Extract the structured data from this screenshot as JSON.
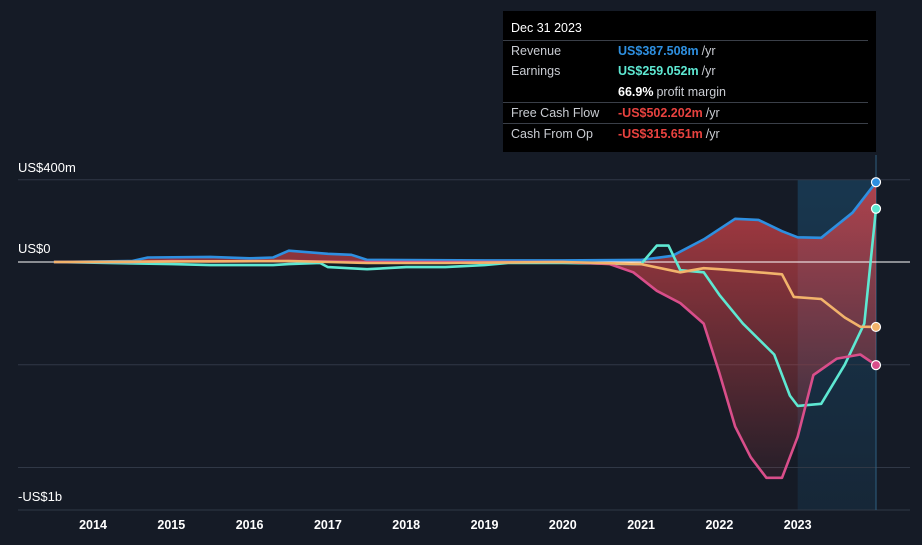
{
  "tooltip": {
    "date": "Dec 31 2023",
    "rows": [
      {
        "label": "Revenue",
        "value": "US$387.508m",
        "suffix": "/yr",
        "color": "#2e8fe0"
      },
      {
        "label": "Earnings",
        "value": "US$259.052m",
        "suffix": "/yr",
        "color": "#5ee8d2"
      },
      {
        "label": "Free Cash Flow",
        "value": "-US$502.202m",
        "suffix": "/yr",
        "color": "#e8423f"
      },
      {
        "label": "Cash From Op",
        "value": "-US$315.651m",
        "suffix": "/yr",
        "color": "#e8423f"
      }
    ],
    "margin_value": "66.9%",
    "margin_label": "profit margin"
  },
  "chart_data": {
    "type": "line",
    "y_labels": [
      "US$400m",
      "US$0",
      "-US$1b"
    ],
    "ylim": [
      -1200,
      450
    ],
    "xlim": [
      2013.4,
      2024.4
    ],
    "x_ticks": [
      "2014",
      "2015",
      "2016",
      "2017",
      "2018",
      "2019",
      "2020",
      "2021",
      "2022",
      "2023"
    ],
    "highlight_start": 2023.0,
    "highlight_end": 2024.0,
    "series": [
      {
        "name": "Revenue",
        "color": "#2e8fe0",
        "points": [
          [
            2013.5,
            0
          ],
          [
            2014.5,
            5
          ],
          [
            2014.7,
            22
          ],
          [
            2015.5,
            25
          ],
          [
            2016.0,
            18
          ],
          [
            2016.3,
            22
          ],
          [
            2016.5,
            55
          ],
          [
            2017.0,
            40
          ],
          [
            2017.3,
            35
          ],
          [
            2017.5,
            10
          ],
          [
            2019.0,
            8
          ],
          [
            2020.0,
            8
          ],
          [
            2021.0,
            10
          ],
          [
            2021.4,
            30
          ],
          [
            2021.8,
            110
          ],
          [
            2022.2,
            210
          ],
          [
            2022.5,
            205
          ],
          [
            2022.8,
            150
          ],
          [
            2023.0,
            120
          ],
          [
            2023.3,
            118
          ],
          [
            2023.7,
            240
          ],
          [
            2024.0,
            388
          ]
        ]
      },
      {
        "name": "Earnings",
        "color": "#5ee8d2",
        "points": [
          [
            2013.5,
            0
          ],
          [
            2015.0,
            -10
          ],
          [
            2015.5,
            -15
          ],
          [
            2016.3,
            -15
          ],
          [
            2016.5,
            -10
          ],
          [
            2016.9,
            -5
          ],
          [
            2017.0,
            -25
          ],
          [
            2017.5,
            -35
          ],
          [
            2018.0,
            -25
          ],
          [
            2018.5,
            -25
          ],
          [
            2019.0,
            -15
          ],
          [
            2019.3,
            -5
          ],
          [
            2020.0,
            -5
          ],
          [
            2021.0,
            -10
          ],
          [
            2021.2,
            80
          ],
          [
            2021.35,
            80
          ],
          [
            2021.5,
            -40
          ],
          [
            2021.8,
            -50
          ],
          [
            2022.0,
            -160
          ],
          [
            2022.3,
            -300
          ],
          [
            2022.7,
            -450
          ],
          [
            2022.9,
            -650
          ],
          [
            2023.0,
            -700
          ],
          [
            2023.3,
            -690
          ],
          [
            2023.6,
            -500
          ],
          [
            2023.85,
            -300
          ],
          [
            2024.0,
            259
          ]
        ]
      },
      {
        "name": "Free Cash Flow",
        "color": "#d94e8a",
        "points": [
          [
            2013.5,
            0
          ],
          [
            2014.5,
            0
          ],
          [
            2015.0,
            5
          ],
          [
            2015.5,
            3
          ],
          [
            2016.5,
            5
          ],
          [
            2017.5,
            0
          ],
          [
            2019.5,
            0
          ],
          [
            2020.0,
            0
          ],
          [
            2020.6,
            -10
          ],
          [
            2020.9,
            -50
          ],
          [
            2021.2,
            -140
          ],
          [
            2021.5,
            -200
          ],
          [
            2021.8,
            -300
          ],
          [
            2022.0,
            -540
          ],
          [
            2022.2,
            -800
          ],
          [
            2022.4,
            -950
          ],
          [
            2022.6,
            -1050
          ],
          [
            2022.8,
            -1050
          ],
          [
            2023.0,
            -850
          ],
          [
            2023.2,
            -550
          ],
          [
            2023.5,
            -470
          ],
          [
            2023.8,
            -450
          ],
          [
            2024.0,
            -502
          ]
        ]
      },
      {
        "name": "Cash From Op",
        "color": "#f2b36b",
        "points": [
          [
            2013.5,
            0
          ],
          [
            2016.5,
            5
          ],
          [
            2017.5,
            -5
          ],
          [
            2018.5,
            -5
          ],
          [
            2020.0,
            0
          ],
          [
            2021.0,
            -10
          ],
          [
            2021.5,
            -50
          ],
          [
            2021.8,
            -30
          ],
          [
            2022.0,
            -35
          ],
          [
            2022.5,
            -50
          ],
          [
            2022.8,
            -60
          ],
          [
            2022.95,
            -170
          ],
          [
            2023.3,
            -180
          ],
          [
            2023.6,
            -270
          ],
          [
            2023.8,
            -315
          ],
          [
            2024.0,
            -316
          ]
        ]
      }
    ]
  }
}
